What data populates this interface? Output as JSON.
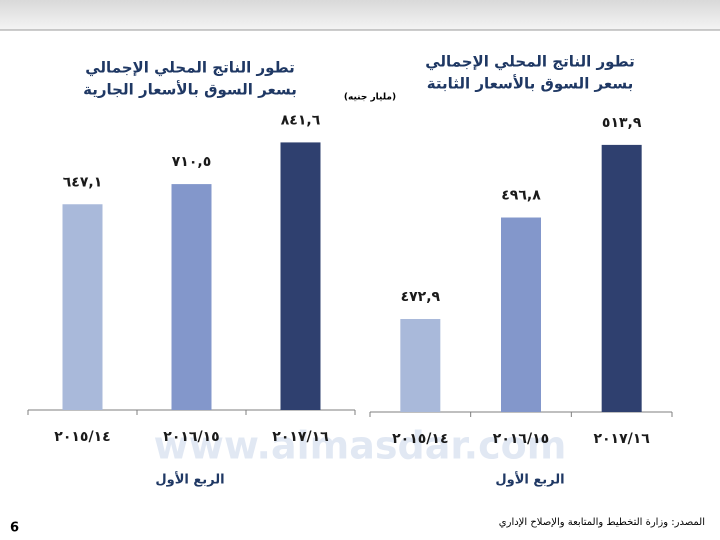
{
  "page_number": "6",
  "source": "المصدر: وزارة التخطيط والمتابعة والإصلاح الإداري",
  "unit_label": "(مليار جنيه)",
  "watermark": "www.almasdar.com",
  "chart_data": [
    {
      "type": "bar",
      "title": "تطور الناتج المحلي الإجمالي",
      "subtitle": "بسعر السوق بالأسعار الجارية",
      "x_label": "الربع الأول",
      "categories": [
        "٢٠١٥/١٤",
        "٢٠١٦/١٥",
        "٢٠١٧/١٦"
      ],
      "values": [
        647.1,
        710.5,
        841.6
      ],
      "value_labels": [
        "٦٤٧,١",
        "٧١٠,٥",
        "٨٤١,٦"
      ],
      "colors": [
        "#a9b9da",
        "#8397cb",
        "#2f406f"
      ],
      "ylim": [
        0,
        975
      ]
    },
    {
      "type": "bar",
      "title": "تطور الناتج المحلي الإجمالي",
      "subtitle": "بسعر السوق بالأسعار الثابتة",
      "x_label": "الربع الأول",
      "categories": [
        "٢٠١٥/١٤",
        "٢٠١٦/١٥",
        "٢٠١٧/١٦"
      ],
      "values": [
        472.9,
        496.8,
        513.9
      ],
      "value_labels": [
        "٤٧٢,٩",
        "٤٩٦,٨",
        "٥١٣,٩"
      ],
      "colors": [
        "#a9b9da",
        "#8397cb",
        "#2f406f"
      ],
      "ylim": [
        451,
        524
      ]
    }
  ]
}
